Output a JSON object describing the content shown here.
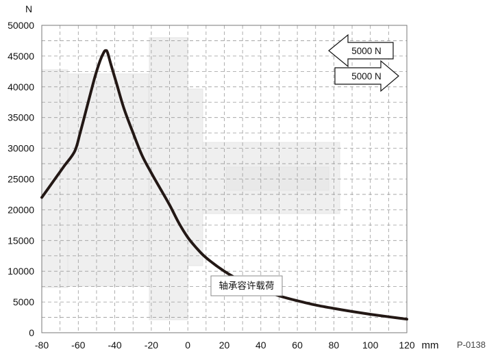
{
  "chart_data": {
    "type": "line",
    "title": "",
    "xlabel": "",
    "ylabel": "",
    "x_unit": "mm",
    "y_unit": "N",
    "xlim": [
      -80,
      120
    ],
    "ylim": [
      0,
      50000
    ],
    "x_ticks": [
      "-80",
      "-60",
      "-40",
      "-20",
      "0",
      "20",
      "40",
      "60",
      "80",
      "100",
      "120"
    ],
    "y_ticks": [
      "0",
      "5000",
      "10000",
      "15000",
      "20000",
      "25000",
      "30000",
      "35000",
      "40000",
      "45000",
      "50000"
    ],
    "grid": true,
    "series": [
      {
        "name": "轴承容许载荷",
        "color": "#231815",
        "x": [
          -80,
          -74,
          -68,
          -62,
          -59,
          -55,
          -51,
          -48,
          -46,
          -45,
          -44,
          -42,
          -39,
          -35,
          -30,
          -25,
          -20,
          -15,
          -10,
          -5,
          0,
          5,
          10,
          20,
          30,
          40,
          50,
          60,
          70,
          80,
          90,
          100,
          110,
          120
        ],
        "y": [
          22000,
          24500,
          27000,
          29500,
          32500,
          37000,
          41500,
          44300,
          45600,
          45900,
          45600,
          43500,
          40500,
          36500,
          32500,
          28800,
          26000,
          23400,
          20800,
          17900,
          15500,
          13700,
          12200,
          10000,
          8300,
          7000,
          6000,
          5200,
          4500,
          3950,
          3450,
          3000,
          2600,
          2200
        ]
      }
    ],
    "annotations": {
      "curve_label": "轴承容许载荷",
      "arrow_left_label": "5000 N",
      "arrow_right_label": "5000 N",
      "code": "P-0138"
    }
  }
}
